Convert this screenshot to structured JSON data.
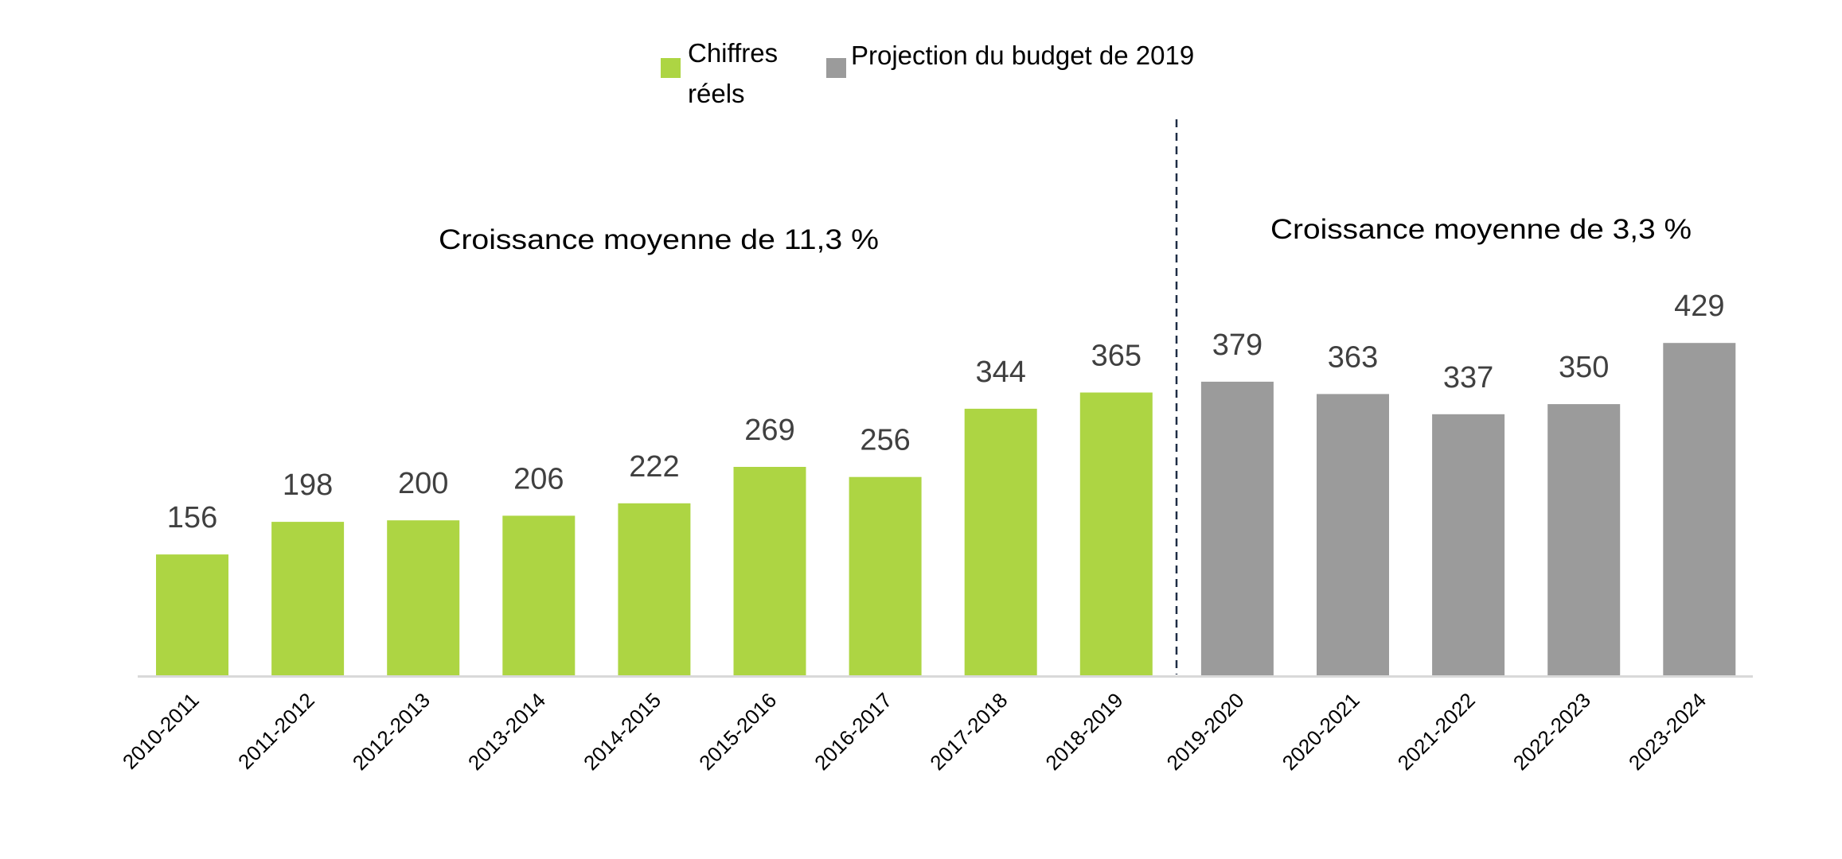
{
  "chart_data": {
    "type": "bar",
    "title": "",
    "xlabel": "",
    "ylabel": "",
    "ylim": [
      0,
      450
    ],
    "grid": false,
    "legend_position": "top-center",
    "categories": [
      "2010-2011",
      "2011-2012",
      "2012-2013",
      "2013-2014",
      "2014-2015",
      "2015-2016",
      "2016-2017",
      "2017-2018",
      "2018-2019",
      "2019-2020",
      "2020-2021",
      "2021-2022",
      "2022-2023",
      "2023-2024"
    ],
    "values": [
      156,
      198,
      200,
      206,
      222,
      269,
      256,
      344,
      365,
      379,
      363,
      337,
      350,
      429
    ],
    "series": [
      {
        "name": "Chiffres réels",
        "color": "#ADD543",
        "categories": [
          "2010-2011",
          "2011-2012",
          "2012-2013",
          "2013-2014",
          "2014-2015",
          "2015-2016",
          "2016-2017",
          "2017-2018",
          "2018-2019"
        ],
        "values": [
          156,
          198,
          200,
          206,
          222,
          269,
          256,
          344,
          365
        ]
      },
      {
        "name": "Projection du budget de 2019",
        "color": "#9B9B9B",
        "categories": [
          "2019-2020",
          "2020-2021",
          "2021-2022",
          "2022-2023",
          "2023-2024"
        ],
        "values": [
          379,
          363,
          337,
          350,
          429
        ]
      }
    ],
    "data_labels": [
      "156",
      "198",
      "200",
      "206",
      "222",
      "269",
      "256",
      "344",
      "365",
      "379",
      "363",
      "337",
      "350",
      "429"
    ],
    "annotations": [
      {
        "text": "Croissance moyenne de 11,3 %",
        "applies_to": "Chiffres réels"
      },
      {
        "text": "Croissance moyenne de 3,3 %",
        "applies_to": "Projection du budget de 2019"
      }
    ],
    "divider": {
      "style": "dashed",
      "between": [
        "2018-2019",
        "2019-2020"
      ],
      "color": "#1F2D45"
    },
    "axis_color": "#D9D9D9",
    "label_color": "#404040"
  },
  "legend": {
    "items": [
      {
        "label_line1": "Chiffres",
        "label_line2": "réels",
        "color": "#ADD543"
      },
      {
        "label_line1": "Projection du budget de 2019",
        "label_line2": "",
        "color": "#9B9B9B"
      }
    ]
  }
}
